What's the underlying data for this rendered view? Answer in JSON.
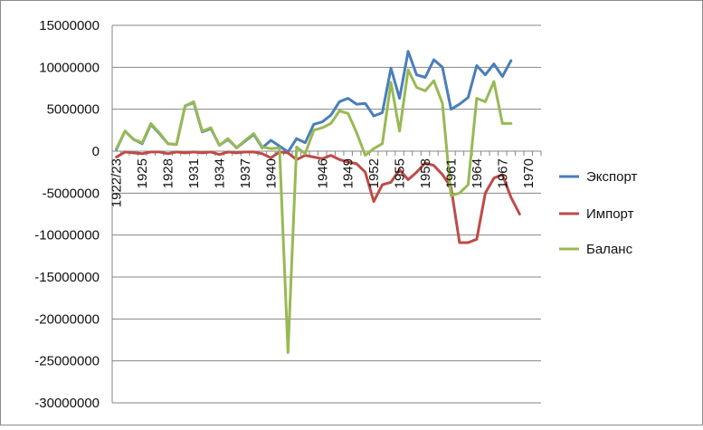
{
  "chart_data": {
    "type": "line",
    "title": "",
    "xlabel": "",
    "ylabel": "",
    "ylim": [
      -30000000,
      15000000
    ],
    "yticks": [
      15000000,
      10000000,
      5000000,
      0,
      -5000000,
      -10000000,
      -15000000,
      -20000000,
      -25000000,
      -30000000
    ],
    "ytick_labels": [
      "15000000",
      "10000000",
      "5000000",
      "0",
      "-5000000",
      "-10000000",
      "-15000000",
      "-20000000",
      "-25000000",
      "-30000000"
    ],
    "grid": true,
    "legend_position": "right",
    "categories": [
      "1922/23",
      "1923",
      "1924",
      "1925",
      "1926",
      "1927",
      "1928",
      "1929",
      "1930",
      "1931",
      "1932",
      "1933",
      "1934",
      "1935",
      "1936",
      "1937",
      "1938",
      "1939",
      "1940",
      "1941",
      "1942",
      "1943",
      "1944",
      "1945",
      "1946",
      "1947",
      "1948",
      "1949",
      "1950",
      "1951",
      "1952",
      "1953",
      "1954",
      "1955",
      "1956",
      "1957",
      "1958",
      "1959",
      "1960",
      "1961",
      "1962",
      "1963",
      "1964",
      "1965",
      "1966",
      "1967",
      "1968",
      "1969",
      "1970",
      "1971"
    ],
    "x_tick_labels": [
      "1922/23",
      "1925",
      "1928",
      "1931",
      "1934",
      "1937",
      "1940",
      "1946",
      "1949",
      "1952",
      "1955",
      "1958",
      "1961",
      "1964",
      "1967",
      "1970"
    ],
    "x_tick_indices": [
      0,
      3,
      6,
      9,
      12,
      15,
      18,
      24,
      27,
      30,
      33,
      36,
      39,
      42,
      45,
      48
    ],
    "series": [
      {
        "name": "Экспорт",
        "color": "#4a7ebb",
        "values": [
          200000,
          2400000,
          1400000,
          900000,
          3200000,
          2100000,
          900000,
          800000,
          5400000,
          5800000,
          2300000,
          2700000,
          700000,
          1400000,
          400000,
          1200000,
          2000000,
          400000,
          1300000,
          600000,
          -100000,
          1500000,
          1000000,
          3200000,
          3500000,
          4300000,
          5900000,
          6300000,
          5600000,
          5700000,
          4200000,
          4600000,
          9900000,
          6300000,
          11900000,
          9100000,
          8800000,
          10900000,
          10000000,
          5000000,
          5600000,
          6400000,
          10200000,
          9100000,
          10400000,
          8900000,
          10800000,
          null,
          null,
          null
        ]
      },
      {
        "name": "Импорт",
        "color": "#be4b48",
        "values": [
          -700000,
          -100000,
          -200000,
          -300000,
          -100000,
          -100000,
          -300000,
          -100000,
          -200000,
          -100000,
          -200000,
          -100000,
          -400000,
          -100000,
          -200000,
          -100000,
          -100000,
          -300000,
          -800000,
          -100000,
          -200000,
          -1000000,
          -500000,
          -700000,
          -900000,
          -500000,
          -1000000,
          -1300000,
          -1500000,
          -2500000,
          -6000000,
          -4000000,
          -3700000,
          -2200000,
          -3400000,
          -2500000,
          -1400000,
          -1700000,
          -2800000,
          -4300000,
          -10900000,
          -10900000,
          -10500000,
          -5000000,
          -3200000,
          -2800000,
          -5500000,
          -7500000,
          null,
          null
        ]
      },
      {
        "name": "Баланс",
        "color": "#98b954",
        "values": [
          300000,
          2400000,
          1400000,
          1000000,
          3300000,
          2200000,
          900000,
          800000,
          5400000,
          5900000,
          2400000,
          2800000,
          700000,
          1500000,
          400000,
          1300000,
          2100000,
          500000,
          300000,
          400000,
          -24000000,
          500000,
          -300000,
          2500000,
          2800000,
          3300000,
          4800000,
          4500000,
          2200000,
          -500000,
          300000,
          900000,
          8200000,
          2400000,
          9700000,
          7600000,
          7200000,
          8400000,
          5700000,
          -5300000,
          -5000000,
          -4000000,
          6300000,
          5900000,
          8300000,
          3300000,
          3300000,
          null,
          null,
          null
        ]
      }
    ]
  }
}
